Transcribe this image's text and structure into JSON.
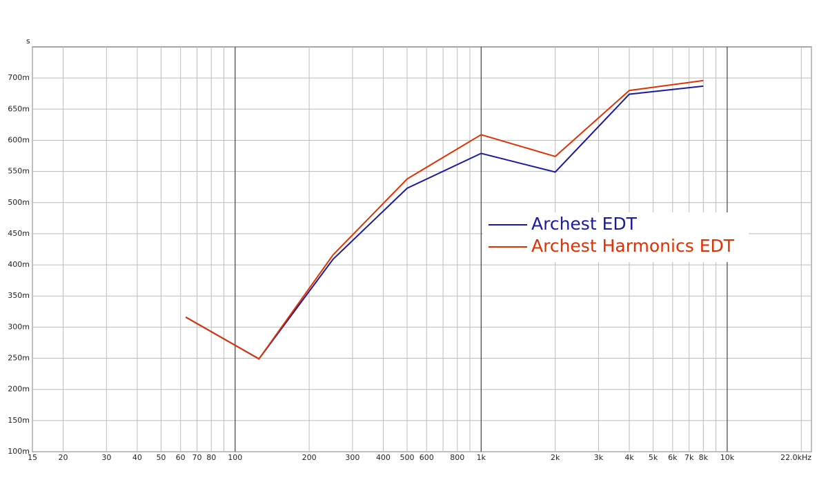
{
  "chart_data": {
    "type": "line",
    "log_x": true,
    "ylabel": "s",
    "xlim": [
      15,
      22000
    ],
    "ylim": [
      0.1,
      0.75
    ],
    "xticks": [
      15,
      20,
      30,
      40,
      50,
      60,
      70,
      80,
      100,
      200,
      300,
      400,
      500,
      600,
      800,
      {
        "value": 1000,
        "label": "1k"
      },
      {
        "value": 2000,
        "label": "2k"
      },
      {
        "value": 3000,
        "label": "3k"
      },
      {
        "value": 4000,
        "label": "4k"
      },
      {
        "value": 5000,
        "label": "5k"
      },
      {
        "value": 6000,
        "label": "6k"
      },
      {
        "value": 7000,
        "label": "7k"
      },
      {
        "value": 8000,
        "label": "8k"
      },
      {
        "value": 10000,
        "label": "10k"
      },
      {
        "value": 22000,
        "label": "22.0kHz"
      }
    ],
    "x_minor_grid": [
      90,
      700,
      900,
      9000,
      20000
    ],
    "x_major_grid": [
      100,
      1000,
      10000
    ],
    "yticks": [
      {
        "value": 0.1,
        "label": "100m"
      },
      {
        "value": 0.15,
        "label": "150m"
      },
      {
        "value": 0.2,
        "label": "200m"
      },
      {
        "value": 0.25,
        "label": "250m"
      },
      {
        "value": 0.3,
        "label": "300m"
      },
      {
        "value": 0.35,
        "label": "350m"
      },
      {
        "value": 0.4,
        "label": "400m"
      },
      {
        "value": 0.45,
        "label": "450m"
      },
      {
        "value": 0.5,
        "label": "500m"
      },
      {
        "value": 0.55,
        "label": "550m"
      },
      {
        "value": 0.6,
        "label": "600m"
      },
      {
        "value": 0.65,
        "label": "650m"
      },
      {
        "value": 0.7,
        "label": "700m"
      }
    ],
    "grid": true,
    "x": [
      63,
      125,
      250,
      500,
      1000,
      2000,
      4000,
      8000
    ],
    "series": [
      {
        "name": "Archest EDT",
        "color": "#1a1aa0",
        "values": [
          0.316,
          0.249,
          0.409,
          0.523,
          0.579,
          0.549,
          0.674,
          0.687
        ]
      },
      {
        "name": "Archest Harmonics EDT",
        "color": "#e03000",
        "values": [
          0.316,
          0.249,
          0.416,
          0.538,
          0.609,
          0.574,
          0.68,
          0.696
        ]
      }
    ]
  }
}
